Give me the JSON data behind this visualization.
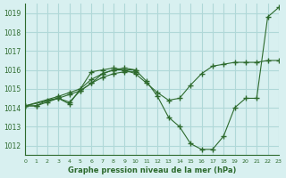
{
  "title": "Graphe pression niveau de la mer (hPa)",
  "background_color": "#d8f0f0",
  "grid_color": "#b0d8d8",
  "line_color": "#2d6a2d",
  "xlim": [
    0,
    23
  ],
  "ylim": [
    1011.5,
    1019.5
  ],
  "yticks": [
    1012,
    1013,
    1014,
    1015,
    1016,
    1017,
    1018,
    1019
  ],
  "xticks": [
    0,
    1,
    2,
    3,
    4,
    5,
    6,
    7,
    8,
    9,
    10,
    11,
    12,
    13,
    14,
    15,
    16,
    17,
    18,
    19,
    20,
    21,
    22,
    23
  ],
  "lines": [
    {
      "x": [
        0,
        1,
        2,
        3,
        4,
        5,
        6,
        7,
        8,
        9,
        10,
        11,
        12,
        13,
        14,
        15,
        16,
        17,
        18,
        19,
        20,
        21,
        22,
        23
      ],
      "y": [
        1014.1,
        1014.1,
        1014.4,
        1014.5,
        1014.2,
        1015.0,
        1015.9,
        1016.0,
        1016.1,
        1016.0,
        1016.0,
        1015.4,
        1014.6,
        1013.5,
        1013.0,
        1012.1,
        1011.8,
        1011.8,
        1012.5,
        1014.0,
        1014.5,
        1014.5,
        1018.8,
        1019.3
      ]
    },
    {
      "x": [
        0,
        1,
        2,
        3,
        4,
        5,
        6,
        7,
        8,
        9,
        10,
        11,
        12,
        13,
        14,
        15,
        16,
        17,
        18,
        19,
        20,
        21,
        22,
        23
      ],
      "y": [
        1014.1,
        1014.1,
        1014.3,
        1014.5,
        1014.3,
        1014.9,
        1015.3,
        1015.8,
        1016.0,
        1016.0,
        1015.8,
        1015.3,
        1014.8,
        1014.4,
        1014.5,
        1015.2,
        1015.8,
        1016.2,
        1016.3,
        1016.4,
        1016.4,
        1016.4,
        1016.5,
        1016.5
      ]
    },
    {
      "x": [
        0,
        3,
        4,
        5,
        6,
        7,
        8,
        9,
        10
      ],
      "y": [
        1014.1,
        1014.6,
        1014.8,
        1015.0,
        1015.5,
        1015.8,
        1016.0,
        1016.1,
        1016.0
      ]
    },
    {
      "x": [
        0,
        3,
        4,
        5,
        6,
        7,
        8,
        9,
        10
      ],
      "y": [
        1014.1,
        1014.5,
        1014.7,
        1014.9,
        1015.3,
        1015.6,
        1015.8,
        1015.9,
        1015.9
      ]
    }
  ]
}
